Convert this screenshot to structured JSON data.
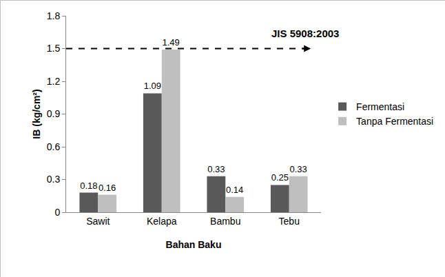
{
  "chart_data": {
    "type": "bar",
    "categories": [
      "Sawit",
      "Kelapa",
      "Bambu",
      "Tebu"
    ],
    "series": [
      {
        "name": "Fermentasi",
        "color": "#595959",
        "values": [
          0.18,
          1.09,
          0.33,
          0.25
        ]
      },
      {
        "name": "Tanpa Fermentasi",
        "color": "#bfbfbf",
        "values": [
          0.16,
          1.49,
          0.14,
          0.33
        ]
      }
    ],
    "x_label": "Bahan Baku",
    "y_label": "IB (kg/cm²)",
    "ylim": [
      0,
      1.8
    ],
    "yticks": [
      0,
      0.3,
      0.6,
      0.9,
      1.2,
      1.5,
      1.8
    ],
    "grid": false,
    "legend": "right",
    "data_labels": true,
    "annotations": [
      {
        "text": "JIS 5908:2003",
        "y": 1.5,
        "line_style": "dashed"
      }
    ]
  }
}
